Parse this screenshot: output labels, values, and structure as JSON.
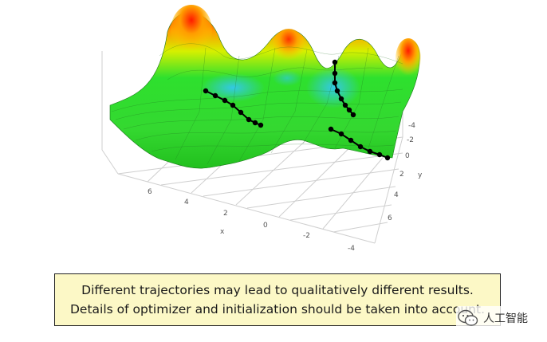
{
  "axes": {
    "x_label": "x",
    "y_label": "y",
    "x_ticks": [
      "6",
      "4",
      "2",
      "0",
      "-2",
      "-4"
    ],
    "y_ticks": [
      "-4",
      "-2",
      "0",
      "2",
      "4",
      "6"
    ]
  },
  "caption": {
    "line1": "Different trajectories may lead to qualitatively different results.",
    "line2": "Details of optimizer and initialization should be taken into account."
  },
  "watermark": {
    "text": "人工智能",
    "icon": "wechat-icon"
  },
  "colors": {
    "surface_low": "#3fd6ee",
    "surface_mid": "#2ee02e",
    "surface_high": "#ff3b00",
    "trajectory": "#000000",
    "caption_bg": "#fcf8c6"
  }
}
